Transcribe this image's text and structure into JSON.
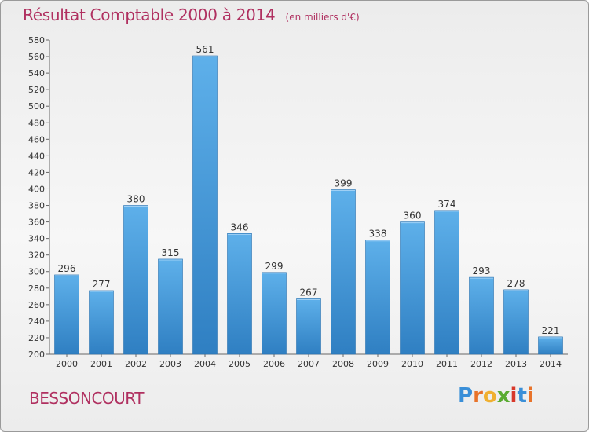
{
  "header": {
    "title": "Résultat Comptable 2000 à 2014",
    "subtitle": "(en milliers d'€)"
  },
  "location": "BESSONCOURT",
  "logo": {
    "text": "Proxiti",
    "letters": [
      {
        "ch": "P",
        "color": "#3a8fd8"
      },
      {
        "ch": "r",
        "color": "#e8732a"
      },
      {
        "ch": "o",
        "color": "#f0b030"
      },
      {
        "ch": "x",
        "color": "#5aab32"
      },
      {
        "ch": "i",
        "color": "#d8382a"
      },
      {
        "ch": "t",
        "color": "#3a8fd8"
      },
      {
        "ch": "i",
        "color": "#e8732a"
      }
    ]
  },
  "chart_data": {
    "type": "bar",
    "title": "Résultat Comptable 2000 à 2014",
    "subtitle": "(en milliers d'€)",
    "xlabel": "",
    "ylabel": "",
    "categories": [
      "2000",
      "2001",
      "2002",
      "2003",
      "2004",
      "2005",
      "2006",
      "2007",
      "2008",
      "2009",
      "2010",
      "2011",
      "2012",
      "2013",
      "2014"
    ],
    "values": [
      296,
      277,
      380,
      315,
      561,
      346,
      299,
      267,
      399,
      338,
      360,
      374,
      293,
      278,
      221
    ],
    "ylim": [
      200,
      580
    ],
    "ytick_step": 20,
    "grid": false,
    "colors": {
      "bar_top": "#5eb0ea",
      "bar_bottom": "#2f7fc2",
      "bar_edge": "#2a72b0",
      "text": "#333333",
      "axis": "#666666"
    }
  }
}
